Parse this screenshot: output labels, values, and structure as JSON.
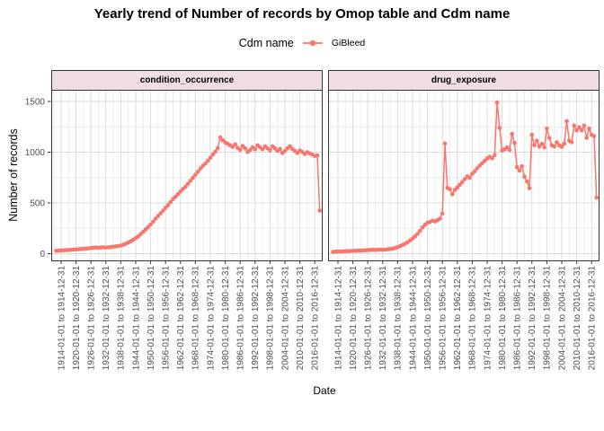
{
  "title": "Yearly trend of Number of records by Omop table and Cdm name",
  "legend": {
    "title": "Cdm name",
    "series_label": "GiBleed"
  },
  "facets": [
    "condition_occurrence",
    "drug_exposure"
  ],
  "axes": {
    "x_title": "Date",
    "y_title": "Number of records",
    "y_ticks": [
      0,
      500,
      1000,
      1500
    ],
    "y_minor": [
      250,
      750,
      1250
    ],
    "x_tick_years": [
      1914,
      1920,
      1926,
      1932,
      1938,
      1944,
      1950,
      1956,
      1962,
      1968,
      1974,
      1980,
      1986,
      1992,
      1998,
      2004,
      2010,
      2016
    ],
    "x_tick_labels": [
      "1914-01-01 to 1914-12-31",
      "1920-01-01 to 1920-12-31",
      "1926-01-01 to 1926-12-31",
      "1932-01-01 to 1932-12-31",
      "1938-01-01 to 1938-12-31",
      "1944-01-01 to 1944-12-31",
      "1950-01-01 to 1950-12-31",
      "1956-01-01 to 1956-12-31",
      "1962-01-01 to 1962-12-31",
      "1968-01-01 to 1968-12-31",
      "1974-01-01 to 1974-12-31",
      "1980-01-01 to 1980-12-31",
      "1986-01-01 to 1986-12-31",
      "1992-01-01 to 1992-12-31",
      "1998-01-01 to 1998-12-31",
      "2004-01-01 to 2004-12-31",
      "2010-01-01 to 2010-12-31",
      "2016-01-01 to 2016-12-31"
    ]
  },
  "colors": {
    "series": "#F8766D",
    "strip_bg": "#F0DEE3",
    "panel_border": "#333333",
    "grid_major": "#DBDBDB",
    "grid_minor": "#ECECEC",
    "tick_text": "#4D4D4D"
  },
  "chart_data": {
    "type": "line",
    "title": "Yearly trend of Number of records by Omop table and Cdm name",
    "xlabel": "Date",
    "ylabel": "Number of records",
    "ylim": [
      0,
      1500
    ],
    "grid": true,
    "legend_position": "top",
    "facet_titles": [
      "condition_occurrence",
      "drug_exposure"
    ],
    "x": [
      1912,
      1913,
      1914,
      1915,
      1916,
      1917,
      1918,
      1919,
      1920,
      1921,
      1922,
      1923,
      1924,
      1925,
      1926,
      1927,
      1928,
      1929,
      1930,
      1931,
      1932,
      1933,
      1934,
      1935,
      1936,
      1937,
      1938,
      1939,
      1940,
      1941,
      1942,
      1943,
      1944,
      1945,
      1946,
      1947,
      1948,
      1949,
      1950,
      1951,
      1952,
      1953,
      1954,
      1955,
      1956,
      1957,
      1958,
      1959,
      1960,
      1961,
      1962,
      1963,
      1964,
      1965,
      1966,
      1967,
      1968,
      1969,
      1970,
      1971,
      1972,
      1973,
      1974,
      1975,
      1976,
      1977,
      1978,
      1979,
      1980,
      1981,
      1982,
      1983,
      1984,
      1985,
      1986,
      1987,
      1988,
      1989,
      1990,
      1991,
      1992,
      1993,
      1994,
      1995,
      1996,
      1997,
      1998,
      1999,
      2000,
      2001,
      2002,
      2003,
      2004,
      2005,
      2006,
      2007,
      2008,
      2009,
      2010,
      2011,
      2012,
      2013,
      2014,
      2015,
      2016,
      2017,
      2018
    ],
    "series": [
      {
        "name": "condition_occurrence / GiBleed",
        "facet": "condition_occurrence",
        "cdm_name": "GiBleed",
        "values": [
          28,
          30,
          32,
          34,
          35,
          36,
          38,
          40,
          42,
          44,
          46,
          48,
          50,
          53,
          56,
          58,
          61,
          58,
          60,
          63,
          60,
          62,
          65,
          68,
          72,
          76,
          80,
          88,
          98,
          110,
          122,
          136,
          152,
          170,
          192,
          215,
          240,
          262,
          288,
          315,
          345,
          372,
          398,
          425,
          452,
          478,
          508,
          538,
          562,
          588,
          612,
          638,
          658,
          688,
          718,
          748,
          778,
          808,
          838,
          865,
          888,
          915,
          945,
          975,
          1005,
          1040,
          1145,
          1118,
          1095,
          1082,
          1068,
          1052,
          1078,
          1042,
          1022,
          1062,
          1038,
          1002,
          1022,
          1048,
          1028,
          1068,
          1048,
          1028,
          1058,
          1038,
          1018,
          1058,
          1038,
          1012,
          1032,
          992,
          1012,
          1038,
          1058,
          1032,
          1012,
          992,
          1018,
          1002,
          982,
          1000,
          988,
          975,
          962,
          968,
          425
        ]
      },
      {
        "name": "drug_exposure / GiBleed",
        "facet": "drug_exposure",
        "cdm_name": "GiBleed",
        "values": [
          18,
          20,
          21,
          22,
          23,
          24,
          25,
          26,
          27,
          28,
          30,
          31,
          32,
          34,
          35,
          36,
          38,
          36,
          38,
          40,
          38,
          40,
          43,
          46,
          50,
          56,
          64,
          74,
          86,
          98,
          112,
          130,
          150,
          170,
          195,
          225,
          258,
          285,
          305,
          312,
          325,
          318,
          330,
          345,
          395,
          1085,
          650,
          635,
          585,
          628,
          652,
          680,
          705,
          735,
          762,
          748,
          788,
          812,
          842,
          868,
          892,
          915,
          938,
          955,
          940,
          972,
          1490,
          1240,
          1015,
          1028,
          1048,
          1022,
          1180,
          1092,
          852,
          818,
          862,
          758,
          712,
          645,
          1172,
          1068,
          1112,
          1055,
          1082,
          1048,
          1232,
          1142,
          1068,
          1055,
          1098,
          1068,
          1052,
          1085,
          1306,
          1112,
          1098,
          1262,
          1216,
          1246,
          1216,
          1262,
          1142,
          1232,
          1172,
          1158,
          552
        ]
      }
    ]
  }
}
